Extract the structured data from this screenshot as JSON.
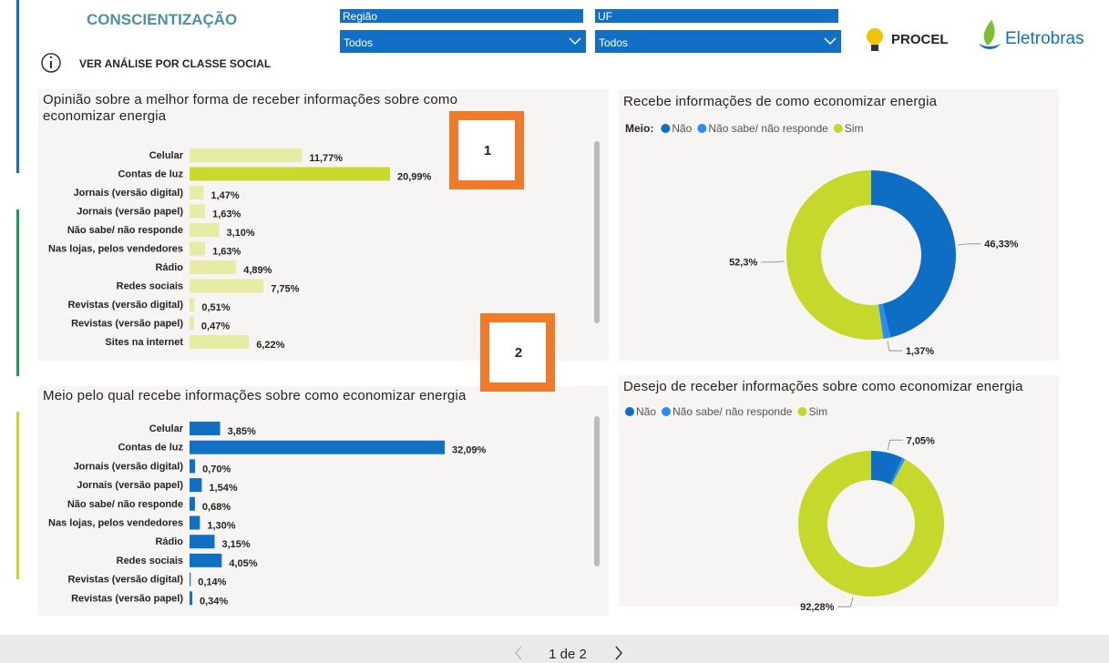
{
  "header": {
    "title": "CONSCIENTIZAÇÃO",
    "link": "VER ANÁLISE POR CLASSE SOCIAL"
  },
  "filters": [
    {
      "label": "Região",
      "value": "Todos"
    },
    {
      "label": "UF",
      "value": "Todos"
    }
  ],
  "logos": [
    "PROCEL",
    "Eletrobras"
  ],
  "callouts": [
    "1",
    "2"
  ],
  "pagination": {
    "label": "1 de 2"
  },
  "chart_data": [
    {
      "type": "bar",
      "orientation": "horizontal",
      "title": "Opinião sobre a melhor forma de receber informações sobre como economizar energia",
      "categories": [
        "Celular",
        "Contas de luz",
        "Jornais (versão digital)",
        "Jornais (versão papel)",
        "Não sabe/ não responde",
        "Nas lojas, pelos vendedores",
        "Rádio",
        "Redes sociais",
        "Revistas (versão digital)",
        "Revistas (versão papel)",
        "Sites na internet"
      ],
      "values": [
        11.77,
        20.99,
        1.47,
        1.63,
        3.1,
        1.63,
        4.89,
        7.75,
        0.51,
        0.47,
        6.22
      ],
      "value_labels": [
        "11,77%",
        "20,99%",
        "1,47%",
        "1,63%",
        "3,10%",
        "1,63%",
        "4,89%",
        "7,75%",
        "0,51%",
        "0,47%",
        "6,22%"
      ],
      "colors": [
        "#e6eca4",
        "#c9d92e",
        "#e6eca4",
        "#e6eca4",
        "#e6eca4",
        "#e6eca4",
        "#e6eca4",
        "#e6eca4",
        "#e6eca4",
        "#e6eca4",
        "#e6eca4"
      ]
    },
    {
      "type": "bar",
      "orientation": "horizontal",
      "title": "Meio pelo qual recebe informações sobre como economizar energia",
      "categories": [
        "Celular",
        "Contas de luz",
        "Jornais (versão digital)",
        "Jornais (versão papel)",
        "Não sabe/ não responde",
        "Nas lojas, pelos vendedores",
        "Rádio",
        "Redes sociais",
        "Revistas (versão digital)",
        "Revistas (versão papel)"
      ],
      "values": [
        3.85,
        32.09,
        0.7,
        1.54,
        0.68,
        1.3,
        3.15,
        4.05,
        0.14,
        0.34
      ],
      "value_labels": [
        "3,85%",
        "32,09%",
        "0,70%",
        "1,54%",
        "0,68%",
        "1,30%",
        "3,15%",
        "4,05%",
        "0,14%",
        "0,34%"
      ],
      "color": "#1170c4"
    },
    {
      "type": "pie",
      "donut": true,
      "title": "Recebe informações de como economizar energia",
      "legend_title": "Meio:",
      "categories": [
        "Não",
        "Não sabe/ não responde",
        "Sim"
      ],
      "values": [
        46.33,
        1.37,
        52.3
      ],
      "value_labels": [
        "46,33%",
        "1,37%",
        "52,3%"
      ],
      "colors": [
        "#0e6ec4",
        "#2a8def",
        "#c6d82b"
      ]
    },
    {
      "type": "pie",
      "donut": true,
      "title": "Desejo de receber informações sobre como economizar energia",
      "categories": [
        "Não",
        "Não sabe/ não responde",
        "Sim"
      ],
      "values": [
        7.05,
        0.67,
        92.28
      ],
      "value_labels": [
        "7,05%",
        null,
        "92,28%"
      ],
      "colors": [
        "#0e6ec4",
        "#2a8def",
        "#c6d82b"
      ]
    }
  ]
}
